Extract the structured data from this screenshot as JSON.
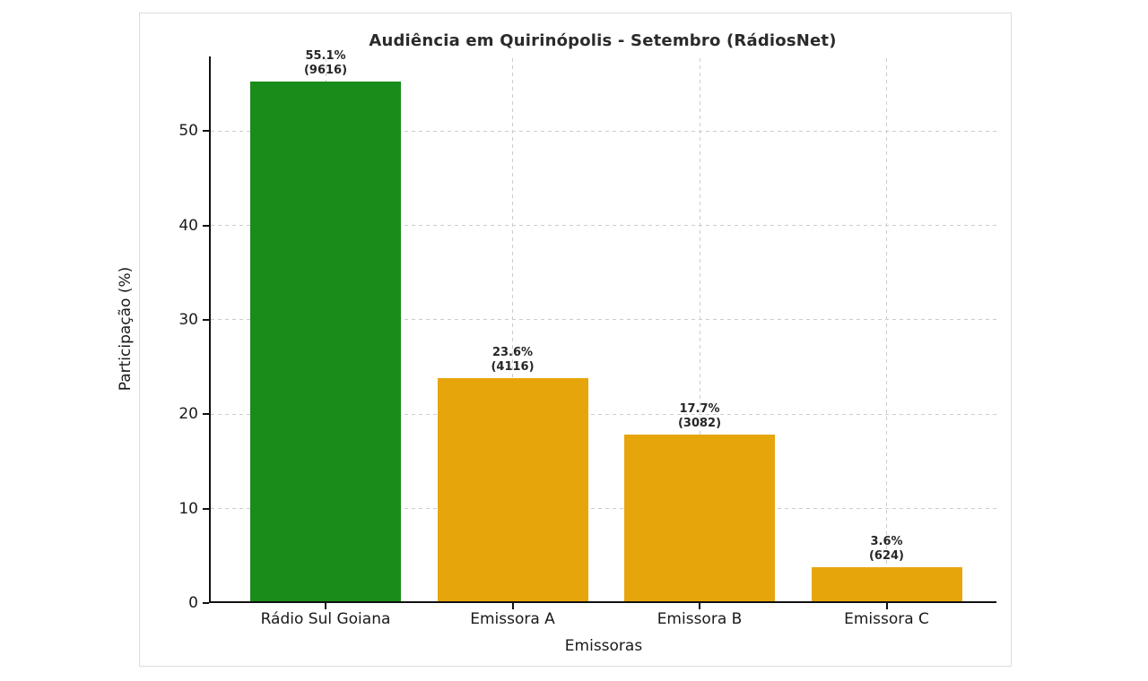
{
  "figure": {
    "background": "#ffffff",
    "border_color": "#dcdcdc"
  },
  "chart_data": {
    "type": "bar",
    "title": "Audiência em Quirinópolis - Setembro (RádiosNet)",
    "xlabel": "Emissoras",
    "ylabel": "Participação (%)",
    "categories": [
      "Rádio Sul Goiana",
      "Emissora A",
      "Emissora B",
      "Emissora C"
    ],
    "values": [
      55.1,
      23.6,
      17.7,
      3.6
    ],
    "counts": [
      9616,
      4116,
      3082,
      624
    ],
    "bar_value_labels": [
      "55.1%\n(9616)",
      "23.6%\n(4116)",
      "17.7%\n(3082)",
      "3.6%\n(624)"
    ],
    "bar_colors": [
      "#1A8C1A",
      "#E6A50A",
      "#E6A50A",
      "#E6A50A"
    ],
    "yticks": [
      0,
      10,
      20,
      30,
      40,
      50
    ],
    "ylim": [
      0,
      57.9
    ],
    "grid": "dashed, horizontal at y ticks and vertical at bar centers",
    "legend": null
  },
  "colors": {
    "highlight_bar": "#1A8C1A",
    "other_bars": "#E6A50A",
    "grid": "#cccccc",
    "axis": "#111111",
    "text": "#1a1a1a",
    "value_label_text": "#262626"
  }
}
